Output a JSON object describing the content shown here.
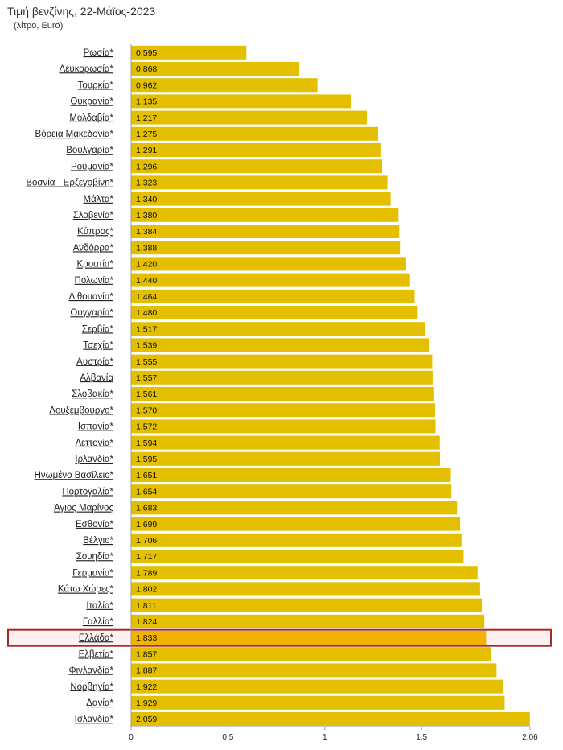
{
  "title": "Τιμή βενζίνης, 22-Μάϊος-2023",
  "subtitle": "(λίτρο, Euro)",
  "colors": {
    "bar": "#e3bf00",
    "highlight_bar": "#f0b400",
    "highlight_border": "#a52a2a",
    "highlight_fill": "#fdf1f1"
  },
  "chart_data": {
    "type": "bar",
    "orientation": "horizontal",
    "categories": [
      "Ρωσία*",
      "Λευκορωσία*",
      "Τουρκία*",
      "Ουκρανία*",
      "Μολδαβία*",
      "Βόρεια Μακεδονία*",
      "Βουλγαρία*",
      "Ρουμανία*",
      "Βοσνία - Ερζεγοβίνη*",
      "Μάλτα*",
      "Σλοβενία*",
      "Κύπρος*",
      "Ανδόρρα*",
      "Κροατία*",
      "Πολωνία*",
      "Λιθουανία*",
      "Ουγγαρία*",
      "Σερβία*",
      "Τσεχία*",
      "Αυστρία*",
      "Αλβανία",
      "Σλοβακία*",
      "Λουξεμβούργο*",
      "Ισπανία*",
      "Λεττονία*",
      "Ιρλανδία*",
      "Ηνωμένο Βασίλειο*",
      "Πορτογαλία*",
      "Άγιος Μαρίνος",
      "Εσθονία*",
      "Βέλγιο*",
      "Σουηδία*",
      "Γερμανία*",
      "Κάτω Χώρες*",
      "Ιταλία*",
      "Γαλλία*",
      "Ελλάδα*",
      "Ελβετία*",
      "Φινλανδία*",
      "Νορβηγία*",
      "Δανία*",
      "Ισλανδία*"
    ],
    "values": [
      0.595,
      0.868,
      0.962,
      1.135,
      1.217,
      1.275,
      1.291,
      1.296,
      1.323,
      1.34,
      1.38,
      1.384,
      1.388,
      1.42,
      1.44,
      1.464,
      1.48,
      1.517,
      1.539,
      1.555,
      1.557,
      1.561,
      1.57,
      1.572,
      1.594,
      1.595,
      1.651,
      1.654,
      1.683,
      1.699,
      1.706,
      1.717,
      1.789,
      1.802,
      1.811,
      1.824,
      1.833,
      1.857,
      1.887,
      1.922,
      1.929,
      2.059
    ],
    "value_labels": [
      "0.595",
      "0.868",
      "0.962",
      "1.135",
      "1.217",
      "1.275",
      "1.291",
      "1.296",
      "1.323",
      "1.340",
      "1.380",
      "1.384",
      "1.388",
      "1.420",
      "1.440",
      "1.464",
      "1.480",
      "1.517",
      "1.539",
      "1.555",
      "1.557",
      "1.561",
      "1.570",
      "1.572",
      "1.594",
      "1.595",
      "1.651",
      "1.654",
      "1.683",
      "1.699",
      "1.706",
      "1.717",
      "1.789",
      "1.802",
      "1.811",
      "1.824",
      "1.833",
      "1.857",
      "1.887",
      "1.922",
      "1.929",
      "2.059"
    ],
    "highlight": "Ελλάδα*",
    "xlim": [
      0,
      2.06
    ],
    "xticks": [
      0,
      0.5,
      1,
      1.5,
      2.06
    ],
    "xtick_labels": [
      "0",
      "0.5",
      "1",
      "1.5",
      "2.06"
    ],
    "grid": false,
    "legend": false
  }
}
